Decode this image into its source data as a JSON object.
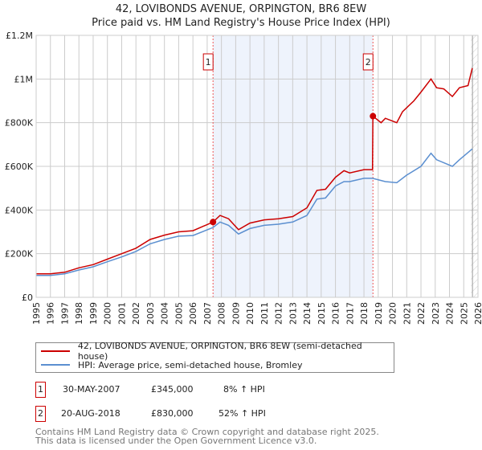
{
  "title_line1": "42, LOVIBONDS AVENUE, ORPINGTON, BR6 8EW",
  "title_line2": "Price paid vs. HM Land Registry's House Price Index (HPI)",
  "chart_data": {
    "type": "line",
    "title": "42, LOVIBONDS AVENUE, ORPINGTON, BR6 8EW — Price paid vs. HM Land Registry's House Price Index (HPI)",
    "xlim": [
      1995,
      2026
    ],
    "ylim": [
      0,
      1200000
    ],
    "x_ticks": [
      1995,
      1996,
      1997,
      1998,
      1999,
      2000,
      2001,
      2002,
      2003,
      2004,
      2005,
      2006,
      2007,
      2008,
      2009,
      2010,
      2011,
      2012,
      2013,
      2014,
      2015,
      2016,
      2017,
      2018,
      2019,
      2020,
      2021,
      2022,
      2023,
      2024,
      2025,
      2026
    ],
    "y_ticks": [
      0,
      200000,
      400000,
      600000,
      800000,
      1000000,
      1200000
    ],
    "y_tick_labels": [
      "£0",
      "£200K",
      "£400K",
      "£600K",
      "£800K",
      "£1M",
      "£1.2M"
    ],
    "grid": true,
    "shaded_range": [
      2007.41,
      2018.63
    ],
    "hatched_from": 2025.5,
    "series": [
      {
        "name": "42, LOVIBONDS AVENUE, ORPINGTON, BR6 8EW (semi-detached house)",
        "color": "#cc0000",
        "x": [
          1995,
          1996,
          1997,
          1998,
          1999,
          2000,
          2001,
          2002,
          2003,
          2004,
          2005,
          2006,
          2007.41,
          2007.9,
          2008.5,
          2009.2,
          2010,
          2011,
          2012,
          2013,
          2014,
          2014.7,
          2015.3,
          2016,
          2016.6,
          2017,
          2018,
          2018.6,
          2018.63,
          2019.2,
          2019.5,
          2020.3,
          2020.7,
          2021.5,
          2022,
          2022.7,
          2023.1,
          2023.6,
          2024.2,
          2024.7,
          2025.3,
          2025.6
        ],
        "y": [
          108000,
          108000,
          115000,
          135000,
          150000,
          175000,
          200000,
          225000,
          265000,
          285000,
          300000,
          305000,
          345000,
          375000,
          360000,
          310000,
          340000,
          355000,
          360000,
          370000,
          410000,
          490000,
          495000,
          550000,
          580000,
          570000,
          585000,
          585000,
          830000,
          800000,
          820000,
          800000,
          850000,
          900000,
          940000,
          1000000,
          960000,
          955000,
          920000,
          960000,
          970000,
          1050000
        ]
      },
      {
        "name": "HPI: Average price, semi-detached house, Bromley",
        "color": "#5b8fd0",
        "x": [
          1995,
          1996,
          1997,
          1998,
          1999,
          2000,
          2001,
          2002,
          2003,
          2004,
          2005,
          2006,
          2007.41,
          2007.9,
          2008.5,
          2009.2,
          2010,
          2011,
          2012,
          2013,
          2014,
          2014.7,
          2015.3,
          2016,
          2016.6,
          2017,
          2018,
          2018.6,
          2019.5,
          2020.3,
          2021,
          2022,
          2022.7,
          2023.1,
          2024.2,
          2024.7,
          2025.6
        ],
        "y": [
          100000,
          100000,
          108000,
          125000,
          140000,
          163000,
          185000,
          210000,
          245000,
          265000,
          280000,
          283000,
          320000,
          345000,
          330000,
          290000,
          315000,
          330000,
          335000,
          345000,
          375000,
          450000,
          455000,
          510000,
          530000,
          530000,
          545000,
          545000,
          530000,
          525000,
          560000,
          600000,
          660000,
          630000,
          600000,
          630000,
          680000
        ]
      }
    ],
    "annotations": [
      {
        "label": "1",
        "x": 2007.41,
        "y": 345000
      },
      {
        "label": "2",
        "x": 2018.63,
        "y": 830000
      }
    ]
  },
  "legend": {
    "property": "42, LOVIBONDS AVENUE, ORPINGTON, BR6 8EW (semi-detached house)",
    "hpi": "HPI: Average price, semi-detached house, Bromley"
  },
  "sales": [
    {
      "num": "1",
      "date": "30-MAY-2007",
      "price": "£345,000",
      "hpi": "8% ↑ HPI"
    },
    {
      "num": "2",
      "date": "20-AUG-2018",
      "price": "£830,000",
      "hpi": "52% ↑ HPI"
    }
  ],
  "footer": {
    "line1": "Contains HM Land Registry data © Crown copyright and database right 2025.",
    "line2": "This data is licensed under the Open Government Licence v3.0."
  }
}
